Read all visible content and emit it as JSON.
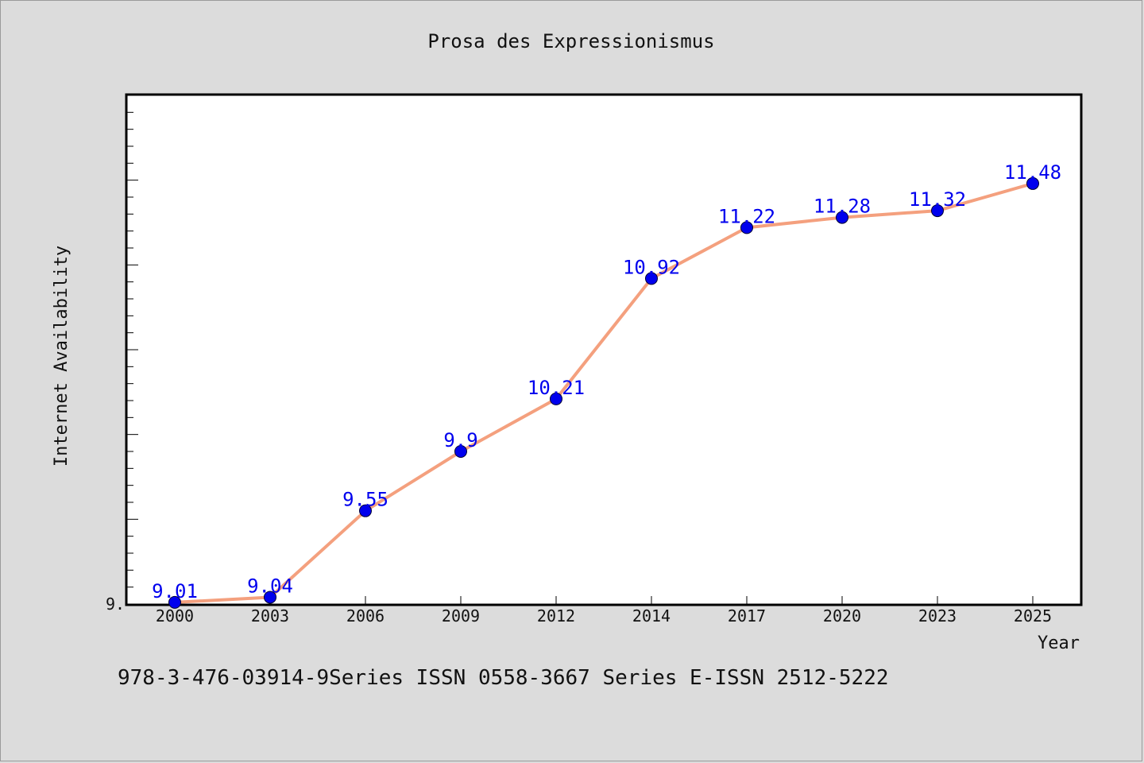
{
  "chart_data": {
    "type": "line",
    "title": "Prosa des Expressionismus",
    "xlabel": "Year",
    "ylabel": "Internet Availability",
    "x": [
      2000,
      2003,
      2006,
      2009,
      2012,
      2014,
      2017,
      2020,
      2023,
      2025
    ],
    "y_tick_label": "9.",
    "series": [
      {
        "values": [
          9.01,
          9.04,
          9.55,
          9.9,
          10.21,
          10.92,
          11.22,
          11.28,
          11.32,
          11.48
        ],
        "data_labels": [
          "9.01",
          "9.04",
          "9.55",
          "9.9",
          "10.21",
          "10.92",
          "11.22",
          "11.28",
          "11.32",
          "11.48"
        ],
        "line_color": "#f4a07e",
        "marker_color": "#0000ee",
        "label_color": "#0000ee"
      }
    ],
    "ylim": [
      9.0,
      12.0
    ],
    "grid": false,
    "legend": "none"
  },
  "footer": {
    "text": "978-3-476-03914-9Series ISSN 0558-3667 Series E-ISSN 2512-5222"
  }
}
